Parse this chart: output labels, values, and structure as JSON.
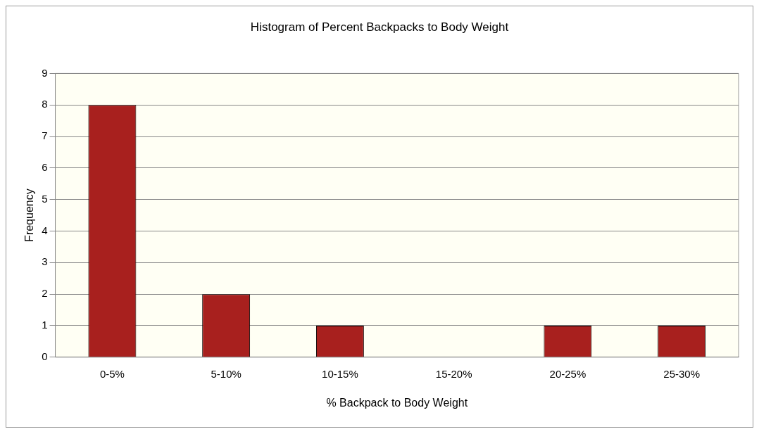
{
  "chart_data": {
    "type": "bar",
    "title": "Histogram of Percent Backpacks to Body Weight",
    "xlabel": "% Backpack to Body Weight",
    "ylabel": "Frequency",
    "categories": [
      "0-5%",
      "5-10%",
      "10-15%",
      "15-20%",
      "20-25%",
      "25-30%"
    ],
    "values": [
      8,
      2,
      1,
      0,
      1,
      1
    ],
    "color": "#a8201e",
    "ylim": [
      0,
      9
    ],
    "yticks": [
      0,
      1,
      2,
      3,
      4,
      5,
      6,
      7,
      8,
      9
    ],
    "grid": "y",
    "legend": false
  }
}
